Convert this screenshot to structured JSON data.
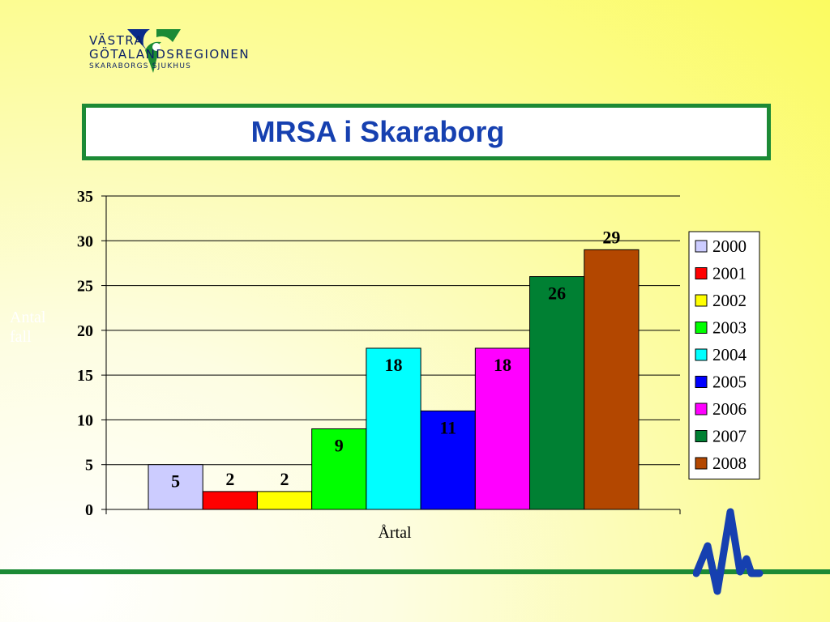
{
  "logo": {
    "line1": "VÄSTRA",
    "line2": "GÖTALANDSREGIONEN",
    "line3": "SKARABORGS SJUKHUS"
  },
  "header": {
    "title": "MRSA i Skaraborg"
  },
  "chart_data": {
    "type": "bar",
    "title": "MRSA i Skaraborg",
    "xlabel": "Årtal",
    "ylabel": "Antal fall",
    "ylim": [
      0,
      35
    ],
    "yticks": [
      0,
      5,
      10,
      15,
      20,
      25,
      30,
      35
    ],
    "grid": true,
    "legend_position": "right",
    "series": [
      {
        "name": "2000",
        "value": 5,
        "color": "#ccccff"
      },
      {
        "name": "2001",
        "value": 2,
        "color": "#ff0000"
      },
      {
        "name": "2002",
        "value": 2,
        "color": "#ffff00"
      },
      {
        "name": "2003",
        "value": 9,
        "color": "#00ff00"
      },
      {
        "name": "2004",
        "value": 18,
        "color": "#00ffff"
      },
      {
        "name": "2005",
        "value": 11,
        "color": "#0000ff"
      },
      {
        "name": "2006",
        "value": 18,
        "color": "#ff00ff"
      },
      {
        "name": "2007",
        "value": 26,
        "color": "#008033"
      },
      {
        "name": "2008",
        "value": 29,
        "color": "#b34700"
      }
    ]
  }
}
